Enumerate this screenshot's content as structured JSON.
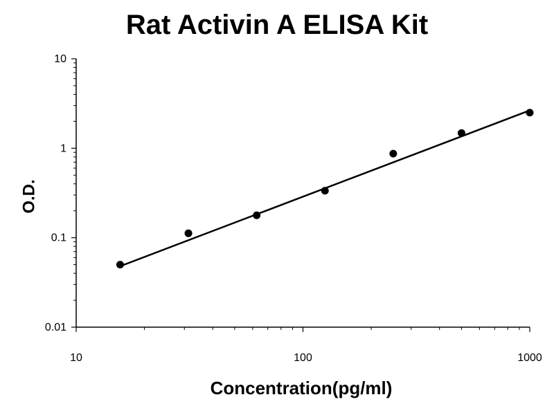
{
  "chart_data": {
    "type": "scatter",
    "title": "Rat Activin A ELISA Kit",
    "xlabel": "Concentration(pg/ml)",
    "ylabel": "O.D.",
    "x_scale": "log",
    "y_scale": "log",
    "xlim": [
      10,
      1000
    ],
    "ylim": [
      0.01,
      10
    ],
    "x_ticks": [
      "10",
      "100",
      "1000"
    ],
    "y_ticks": [
      "0.01",
      "0.1",
      "1",
      "10"
    ],
    "grid": false,
    "legend": "none",
    "series": [
      {
        "x": [
          15.625,
          31.25,
          62.5,
          125,
          250,
          500,
          1000
        ],
        "y": [
          0.05,
          0.112,
          0.178,
          0.335,
          0.87,
          1.48,
          2.5
        ]
      }
    ],
    "fit_line": {
      "x": [
        15.625,
        1000
      ],
      "y": [
        0.048,
        2.65
      ]
    },
    "colors": {
      "marker": "#000000",
      "line": "#000000",
      "axis": "#000000"
    }
  }
}
